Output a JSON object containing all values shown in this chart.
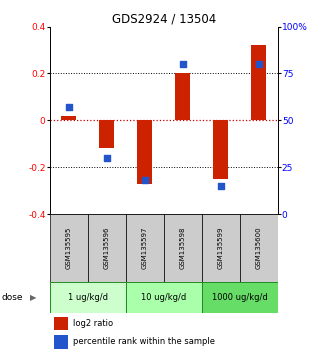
{
  "title": "GDS2924 / 13504",
  "samples": [
    "GSM135595",
    "GSM135596",
    "GSM135597",
    "GSM135598",
    "GSM135599",
    "GSM135600"
  ],
  "log2_ratios": [
    0.02,
    -0.12,
    -0.27,
    0.2,
    -0.25,
    0.32
  ],
  "percentile_ranks": [
    57,
    30,
    18,
    80,
    15,
    80
  ],
  "dose_groups": [
    {
      "label": "1 ug/kg/d",
      "color": "#ccffcc"
    },
    {
      "label": "10 ug/kg/d",
      "color": "#aaffaa"
    },
    {
      "label": "1000 ug/kg/d",
      "color": "#66dd66"
    }
  ],
  "ylim_left": [
    -0.4,
    0.4
  ],
  "ylim_right": [
    0,
    100
  ],
  "yticks_left": [
    -0.4,
    -0.2,
    0.0,
    0.2,
    0.4
  ],
  "yticks_left_labels": [
    "-0.4",
    "-0.2",
    "0",
    "0.2",
    "0.4"
  ],
  "yticks_right": [
    0,
    25,
    50,
    75,
    100
  ],
  "yticks_right_labels": [
    "0",
    "25",
    "50",
    "75",
    "100%"
  ],
  "bar_color": "#cc2200",
  "dot_color": "#2255cc",
  "zero_line_color": "#cc0000",
  "grid_color": "#000000",
  "bar_width": 0.4,
  "dot_size": 22,
  "sample_box_color": "#cccccc",
  "dose_box_colors": [
    "#ccffcc",
    "#aaffaa",
    "#66dd66"
  ],
  "legend_red_label": "log2 ratio",
  "legend_blue_label": "percentile rank within the sample",
  "dose_label": "dose"
}
